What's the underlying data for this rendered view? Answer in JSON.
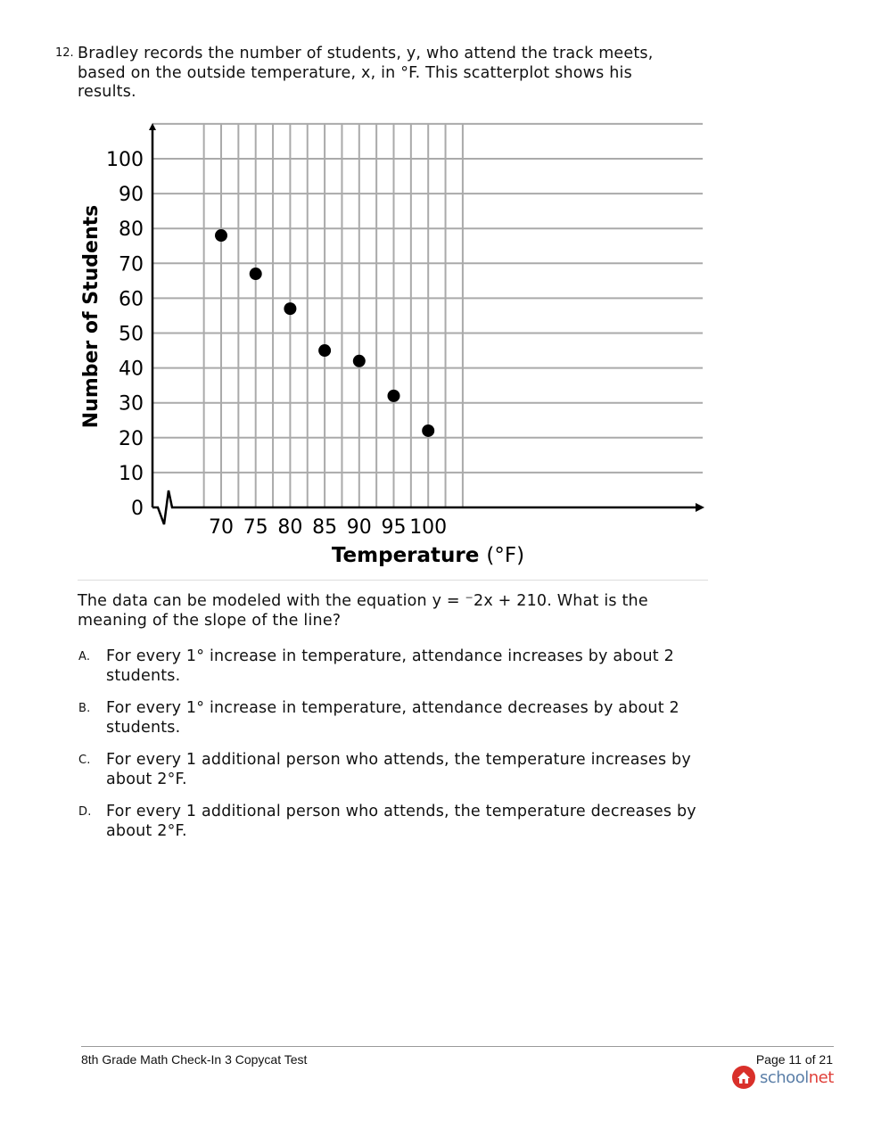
{
  "question": {
    "number": "12.",
    "text": "Bradley records the number of students, y, who attend the track meets, based on the outside temperature, x, in °F. This scatterplot shows his results.",
    "stem": "The data can be modeled with the equation y = ⁻2x + 210. What is the meaning of the slope of the line?",
    "options": [
      {
        "letter": "A.",
        "text": "For every 1° increase in temperature, attendance increases by about 2 students."
      },
      {
        "letter": "B.",
        "text": "For every 1° increase in temperature, attendance decreases by about 2 students."
      },
      {
        "letter": "C.",
        "text": "For every 1 additional person who attends, the temperature increases by about 2°F."
      },
      {
        "letter": "D.",
        "text": "For every 1 additional person who attends, the temperature decreases by about 2°F."
      }
    ]
  },
  "chart_data": {
    "type": "scatter",
    "xlabel": "Temperature (°F)",
    "ylabel": "Number of Students",
    "x": [
      70,
      75,
      80,
      85,
      90,
      95,
      100
    ],
    "y": [
      78,
      67,
      57,
      45,
      42,
      32,
      22
    ],
    "x_ticks": [
      "70",
      "75",
      "80",
      "85",
      "90",
      "95",
      "100"
    ],
    "y_ticks": [
      "0",
      "10",
      "20",
      "30",
      "40",
      "50",
      "60",
      "70",
      "80",
      "90",
      "100"
    ],
    "xlim": [
      65,
      105
    ],
    "ylim": [
      0,
      110
    ],
    "grid": true,
    "x_axis_break": true
  },
  "footer": {
    "title": "8th Grade Math Check-In 3 Copycat Test",
    "page": "Page 11 of 21",
    "logo_part1": "school",
    "logo_part2": "net"
  }
}
